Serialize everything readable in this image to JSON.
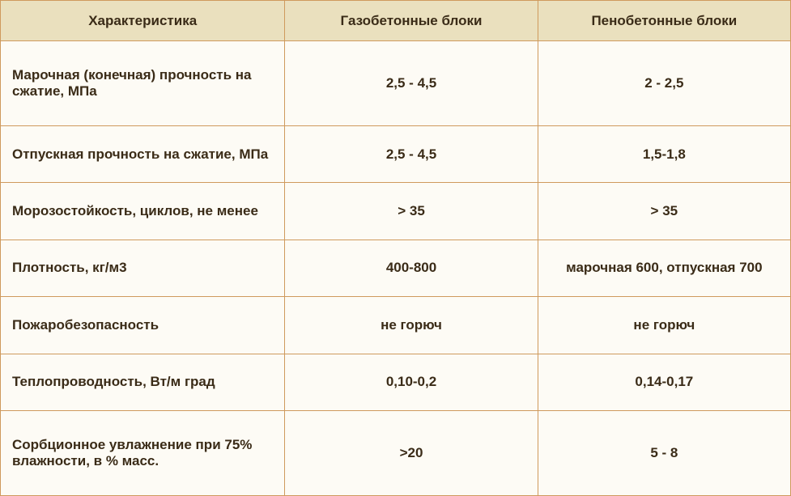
{
  "table": {
    "header_bg": "#eae0be",
    "body_bg": "#fdfbf5",
    "border_color": "#cf9a5d",
    "text_color": "#3a2b17",
    "font_family": "Verdana, Geneva, sans-serif",
    "header_fontsize": 17,
    "body_fontsize": 17,
    "columns": [
      {
        "label": "Характеристика",
        "width_pct": 36,
        "align": "left"
      },
      {
        "label": "Газобетонные блоки",
        "width_pct": 32,
        "align": "center"
      },
      {
        "label": "Пенобетонные блоки",
        "width_pct": 32,
        "align": "center"
      }
    ],
    "rows": [
      {
        "label": "Марочная (конечная) прочность на сжатие, МПа",
        "col1": "2,5 - 4,5",
        "col2": "2 - 2,5"
      },
      {
        "label": "Отпускная прочность на сжатие, МПа",
        "col1": "2,5 - 4,5",
        "col2": "1,5-1,8"
      },
      {
        "label": "Морозостойкость, циклов, не менее",
        "col1": "> 35",
        "col2": "> 35"
      },
      {
        "label": "Плотность, кг/м3",
        "col1": "400-800",
        "col2": "марочная 600, отпускная 700"
      },
      {
        "label": "Пожаробезопасность",
        "col1": "не горюч",
        "col2": "не горюч"
      },
      {
        "label": "Теплопроводность, Вт/м град",
        "col1": "0,10-0,2",
        "col2": "0,14-0,17"
      },
      {
        "label": "Сорбционное увлажнение при 75% влажности, в % масс.",
        "col1": ">20",
        "col2": "5 - 8"
      }
    ]
  }
}
